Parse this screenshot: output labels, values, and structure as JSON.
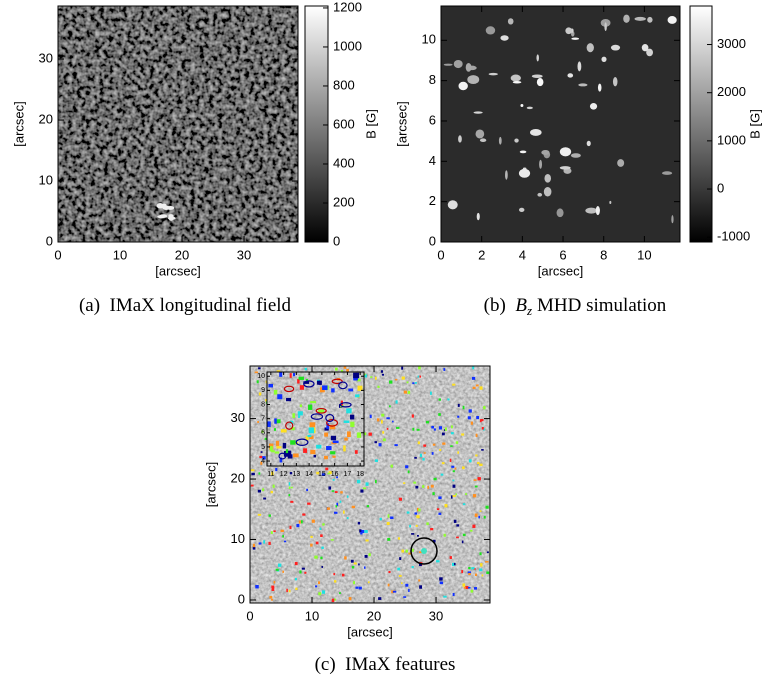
{
  "chart_data": [
    {
      "type": "image",
      "xlabel": "[arcsec]",
      "ylabel": "[arcsec]",
      "xlim": [
        0,
        38.7
      ],
      "ylim": [
        0,
        38.7
      ],
      "xticks": [
        0,
        10,
        20,
        30
      ],
      "yticks": [
        0,
        10,
        20,
        30
      ],
      "colorbar": {
        "label": "B [G]",
        "lim": [
          0,
          1210
        ],
        "ticks": [
          0,
          200,
          400,
          600,
          800,
          1000,
          1200
        ]
      },
      "caption": {
        "label": "(a)",
        "text": "IMaX longitudinal field"
      }
    },
    {
      "type": "image",
      "xlabel": "[arcsec]",
      "ylabel": "[arcsec]",
      "xlim": [
        0,
        11.75
      ],
      "ylim": [
        0,
        11.7
      ],
      "xticks": [
        0,
        2,
        4,
        6,
        8,
        10
      ],
      "yticks": [
        0,
        2,
        4,
        6,
        8,
        10
      ],
      "colorbar": {
        "label": "B [G]",
        "lim": [
          -1100,
          3800
        ],
        "ticks": [
          -1000,
          0,
          1000,
          2000,
          3000
        ]
      },
      "caption": {
        "label": "(b)",
        "symbol": "B",
        "subscript": "z",
        "text": "MHD simulation"
      }
    },
    {
      "type": "image",
      "xlabel": "[arcsec]",
      "ylabel": "[arcsec]",
      "xlim": [
        0,
        38.7
      ],
      "ylim": [
        -0.5,
        38.7
      ],
      "xticks": [
        0,
        10,
        20,
        30
      ],
      "yticks": [
        0,
        10,
        20,
        30
      ],
      "inset": {
        "xlim": [
          10.7,
          18.3
        ],
        "ylim": [
          3.65,
          10.3
        ],
        "xticks": [
          11,
          12,
          13,
          14,
          15,
          16,
          17,
          18
        ],
        "yticks": [
          4,
          5,
          6,
          7,
          8,
          9,
          10
        ]
      },
      "caption": {
        "label": "(c)",
        "text": "IMaX features"
      }
    }
  ]
}
